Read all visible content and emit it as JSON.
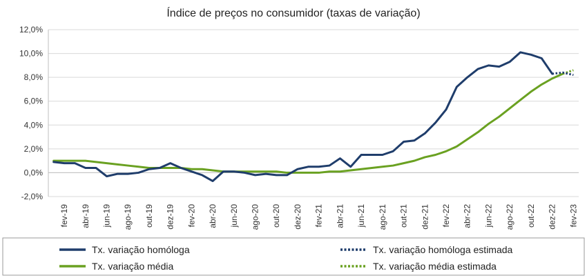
{
  "chart_data": {
    "type": "line",
    "title": "Índice de preços no consumidor  (taxas  de variação)",
    "xlabel": "",
    "ylabel": "",
    "ylim": [
      -2.0,
      12.0
    ],
    "yticks": [
      "12,0%",
      "10,0%",
      "8,0%",
      "6,0%",
      "4,0%",
      "2,0%",
      "0,0%",
      "-2,0%"
    ],
    "ytick_values": [
      12,
      10,
      8,
      6,
      4,
      2,
      0,
      -2
    ],
    "grid": true,
    "legend_position": "bottom",
    "x_labels": [
      "fev-19",
      "abr-19",
      "jun-19",
      "ago-19",
      "out-19",
      "dez-19",
      "fev-20",
      "abr-20",
      "jun-20",
      "ago-20",
      "out-20",
      "dez-20",
      "fev-21",
      "abr-21",
      "jun-21",
      "ago-21",
      "out-21",
      "dez-21",
      "fev-22",
      "abr-22",
      "jun-22",
      "ago-22",
      "out-22",
      "dez-22",
      "fev-23"
    ],
    "x": [
      "jan-19",
      "fev-19",
      "mar-19",
      "abr-19",
      "mai-19",
      "jun-19",
      "jul-19",
      "ago-19",
      "set-19",
      "out-19",
      "nov-19",
      "dez-19",
      "jan-20",
      "fev-20",
      "mar-20",
      "abr-20",
      "mai-20",
      "jun-20",
      "jul-20",
      "ago-20",
      "set-20",
      "out-20",
      "nov-20",
      "dez-20",
      "jan-21",
      "fev-21",
      "mar-21",
      "abr-21",
      "mai-21",
      "jun-21",
      "jul-21",
      "ago-21",
      "set-21",
      "out-21",
      "nov-21",
      "dez-21",
      "jan-22",
      "fev-22",
      "mar-22",
      "abr-22",
      "mai-22",
      "jun-22",
      "jul-22",
      "ago-22",
      "set-22",
      "out-22",
      "nov-22",
      "dez-22",
      "jan-23",
      "fev-23"
    ],
    "series": [
      {
        "name": "Tx. variação homóloga",
        "color": "#1f3d6b",
        "style": "solid",
        "values": [
          0.9,
          0.8,
          0.8,
          0.4,
          0.4,
          -0.3,
          -0.1,
          -0.1,
          0.0,
          0.3,
          0.4,
          0.8,
          0.4,
          0.1,
          -0.2,
          -0.7,
          0.1,
          0.1,
          0.0,
          -0.2,
          -0.1,
          -0.2,
          -0.2,
          0.3,
          0.5,
          0.5,
          0.6,
          1.2,
          0.5,
          1.5,
          1.5,
          1.5,
          1.8,
          2.6,
          2.7,
          3.3,
          4.2,
          5.3,
          7.2,
          8.0,
          8.7,
          9.0,
          8.9,
          9.3,
          10.1,
          9.9,
          9.6,
          8.3,
          null,
          null
        ]
      },
      {
        "name": "Tx. variação homóloga estimada",
        "color": "#1f3d6b",
        "style": "dotted",
        "values": [
          null,
          null,
          null,
          null,
          null,
          null,
          null,
          null,
          null,
          null,
          null,
          null,
          null,
          null,
          null,
          null,
          null,
          null,
          null,
          null,
          null,
          null,
          null,
          null,
          null,
          null,
          null,
          null,
          null,
          null,
          null,
          null,
          null,
          null,
          null,
          null,
          null,
          null,
          null,
          null,
          null,
          null,
          null,
          null,
          null,
          null,
          null,
          8.3,
          8.4,
          8.2
        ]
      },
      {
        "name": "Tx. variação média",
        "color": "#6aa121",
        "style": "solid",
        "values": [
          1.0,
          1.0,
          1.0,
          1.0,
          0.9,
          0.8,
          0.7,
          0.6,
          0.5,
          0.4,
          0.4,
          0.4,
          0.4,
          0.3,
          0.3,
          0.2,
          0.1,
          0.1,
          0.1,
          0.1,
          0.1,
          0.1,
          0.0,
          0.0,
          0.0,
          0.0,
          0.1,
          0.1,
          0.2,
          0.3,
          0.4,
          0.5,
          0.6,
          0.8,
          1.0,
          1.3,
          1.5,
          1.8,
          2.2,
          2.8,
          3.4,
          4.1,
          4.7,
          5.4,
          6.1,
          6.8,
          7.4,
          7.9,
          8.3,
          null
        ]
      },
      {
        "name": "Tx. variação média  estimada",
        "color": "#6aa121",
        "style": "dotted",
        "values": [
          null,
          null,
          null,
          null,
          null,
          null,
          null,
          null,
          null,
          null,
          null,
          null,
          null,
          null,
          null,
          null,
          null,
          null,
          null,
          null,
          null,
          null,
          null,
          null,
          null,
          null,
          null,
          null,
          null,
          null,
          null,
          null,
          null,
          null,
          null,
          null,
          null,
          null,
          null,
          null,
          null,
          null,
          null,
          null,
          null,
          null,
          null,
          null,
          8.3,
          8.6
        ]
      }
    ]
  }
}
